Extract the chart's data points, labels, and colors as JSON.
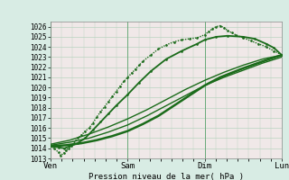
{
  "xlabel": "Pression niveau de la mer( hPa )",
  "bg_color": "#d8ece4",
  "plot_bg_color": "#f0e8e8",
  "grid_color": "#b8d4c0",
  "line_color": "#1a6b1a",
  "ylim": [
    1013,
    1026.5
  ],
  "yticks": [
    1013,
    1014,
    1015,
    1016,
    1017,
    1018,
    1019,
    1020,
    1021,
    1022,
    1023,
    1024,
    1025,
    1026
  ],
  "xtick_labels": [
    "Ven",
    "Sam",
    "Dim",
    "Lun"
  ],
  "xtick_positions": [
    0,
    1,
    2,
    3
  ],
  "x_total": 3.0,
  "lines": [
    {
      "x": [
        0.0,
        0.05,
        0.1,
        0.13,
        0.17,
        0.2,
        0.23,
        0.27,
        0.3,
        0.35,
        0.4,
        0.45,
        0.5,
        0.55,
        0.6,
        0.65,
        0.7,
        0.75,
        0.8,
        0.85,
        0.9,
        0.95,
        1.0,
        1.05,
        1.1,
        1.15,
        1.2,
        1.3,
        1.4,
        1.5,
        1.6,
        1.7,
        1.8,
        1.9,
        2.0,
        2.05,
        2.1,
        2.15,
        2.2,
        2.25,
        2.3,
        2.35,
        2.4,
        2.5,
        2.6,
        2.7,
        2.8,
        2.9,
        3.0
      ],
      "y": [
        1014.2,
        1014.0,
        1013.6,
        1013.3,
        1013.5,
        1013.8,
        1014.0,
        1014.2,
        1014.5,
        1015.0,
        1015.3,
        1015.7,
        1016.0,
        1016.5,
        1017.1,
        1017.6,
        1018.1,
        1018.6,
        1019.1,
        1019.6,
        1020.1,
        1020.6,
        1021.0,
        1021.4,
        1021.8,
        1022.2,
        1022.6,
        1023.2,
        1023.8,
        1024.2,
        1024.5,
        1024.7,
        1024.8,
        1024.9,
        1025.2,
        1025.5,
        1025.8,
        1026.0,
        1026.1,
        1025.9,
        1025.6,
        1025.4,
        1025.2,
        1024.9,
        1024.6,
        1024.3,
        1024.0,
        1023.6,
        1023.2
      ],
      "style": "dotted",
      "linewidth": 1.0,
      "marker": ".",
      "markersize": 1.8
    },
    {
      "x": [
        0.0,
        0.1,
        0.18,
        0.25,
        0.35,
        0.45,
        0.55,
        0.65,
        0.75,
        0.85,
        1.0,
        1.15,
        1.3,
        1.5,
        1.7,
        1.9,
        2.0,
        2.15,
        2.3,
        2.5,
        2.65,
        2.8,
        2.9,
        3.0
      ],
      "y": [
        1014.2,
        1014.1,
        1014.0,
        1014.2,
        1014.5,
        1015.0,
        1015.8,
        1016.6,
        1017.4,
        1018.2,
        1019.3,
        1020.5,
        1021.6,
        1022.8,
        1023.6,
        1024.3,
        1024.7,
        1025.0,
        1025.1,
        1025.0,
        1024.8,
        1024.3,
        1023.9,
        1023.2
      ],
      "style": "solid",
      "linewidth": 1.3,
      "marker": ".",
      "markersize": 1.8
    },
    {
      "x": [
        0.0,
        0.2,
        0.4,
        0.6,
        0.8,
        1.0,
        1.2,
        1.4,
        1.6,
        1.8,
        2.0,
        2.2,
        2.5,
        2.8,
        3.0
      ],
      "y": [
        1014.2,
        1014.3,
        1014.5,
        1014.8,
        1015.2,
        1015.7,
        1016.4,
        1017.2,
        1018.2,
        1019.2,
        1020.2,
        1021.0,
        1021.9,
        1022.7,
        1023.2
      ],
      "style": "solid",
      "linewidth": 1.8,
      "marker": null,
      "markersize": 0
    },
    {
      "x": [
        0.0,
        0.25,
        0.5,
        0.75,
        1.0,
        1.25,
        1.5,
        1.75,
        2.0,
        2.25,
        2.5,
        2.75,
        3.0
      ],
      "y": [
        1014.4,
        1014.8,
        1015.4,
        1016.1,
        1016.9,
        1017.8,
        1018.8,
        1019.8,
        1020.7,
        1021.5,
        1022.2,
        1022.8,
        1023.2
      ],
      "style": "solid",
      "linewidth": 1.0,
      "marker": null,
      "markersize": 0
    },
    {
      "x": [
        0.0,
        0.25,
        0.5,
        0.75,
        1.0,
        1.25,
        1.5,
        1.75,
        2.0,
        2.25,
        2.5,
        2.75,
        3.0
      ],
      "y": [
        1014.3,
        1014.6,
        1015.0,
        1015.6,
        1016.3,
        1017.2,
        1018.2,
        1019.2,
        1020.2,
        1021.0,
        1021.7,
        1022.4,
        1023.0
      ],
      "style": "solid",
      "linewidth": 1.0,
      "marker": null,
      "markersize": 0
    }
  ]
}
